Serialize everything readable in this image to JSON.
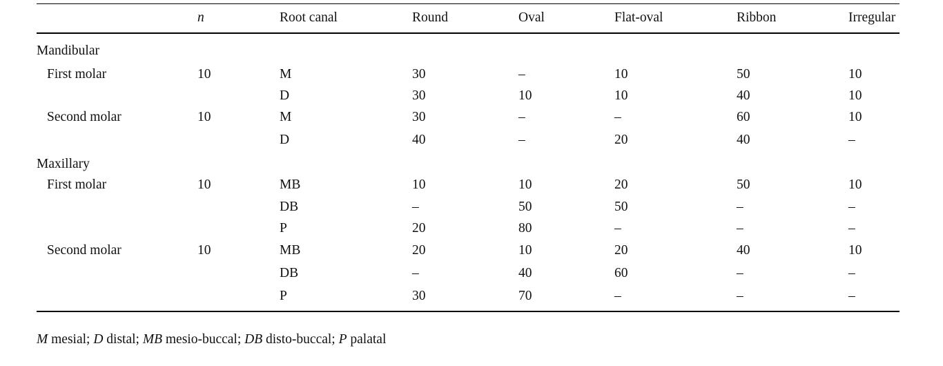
{
  "table": {
    "header": {
      "n": "n",
      "root_canal": "Root canal",
      "round": "Round",
      "oval": "Oval",
      "flat_oval": "Flat-oval",
      "ribbon": "Ribbon",
      "irregular": "Irregular"
    },
    "rows": [
      {
        "kind": "group",
        "label": "Mandibular"
      },
      {
        "kind": "data",
        "tooth": "First molar",
        "n": "10",
        "canal": "M",
        "round": "30",
        "oval": "–",
        "flat_oval": "10",
        "ribbon": "50",
        "irregular": "10"
      },
      {
        "kind": "data",
        "tooth": "",
        "n": "",
        "canal": "D",
        "round": "30",
        "oval": "10",
        "flat_oval": "10",
        "ribbon": "40",
        "irregular": "10"
      },
      {
        "kind": "data",
        "tooth": "Second molar",
        "n": "10",
        "canal": "M",
        "round": "30",
        "oval": "–",
        "flat_oval": "–",
        "ribbon": "60",
        "irregular": "10"
      },
      {
        "kind": "data",
        "tooth": "",
        "n": "",
        "canal": "D",
        "round": "40",
        "oval": "–",
        "flat_oval": "20",
        "ribbon": "40",
        "irregular": "–"
      },
      {
        "kind": "group",
        "label": "Maxillary"
      },
      {
        "kind": "data",
        "tooth": "First molar",
        "n": "10",
        "canal": "MB",
        "round": "10",
        "oval": "10",
        "flat_oval": "20",
        "ribbon": "50",
        "irregular": "10"
      },
      {
        "kind": "data",
        "tooth": "",
        "n": "",
        "canal": "DB",
        "round": "–",
        "oval": "50",
        "flat_oval": "50",
        "ribbon": "–",
        "irregular": "–"
      },
      {
        "kind": "data",
        "tooth": "",
        "n": "",
        "canal": "P",
        "round": "20",
        "oval": "80",
        "flat_oval": "–",
        "ribbon": "–",
        "irregular": "–"
      },
      {
        "kind": "data",
        "tooth": "Second molar",
        "n": "10",
        "canal": "MB",
        "round": "20",
        "oval": "10",
        "flat_oval": "20",
        "ribbon": "40",
        "irregular": "10"
      },
      {
        "kind": "data",
        "tooth": "",
        "n": "",
        "canal": "DB",
        "round": "–",
        "oval": "40",
        "flat_oval": "60",
        "ribbon": "–",
        "irregular": "–"
      },
      {
        "kind": "data",
        "tooth": "",
        "n": "",
        "canal": "P",
        "round": "30",
        "oval": "70",
        "flat_oval": "–",
        "ribbon": "–",
        "irregular": "–"
      }
    ]
  },
  "footnote": [
    {
      "abbr": "M",
      "text": " mesial; "
    },
    {
      "abbr": "D",
      "text": " distal; "
    },
    {
      "abbr": "MB",
      "text": " mesio-buccal; "
    },
    {
      "abbr": "DB",
      "text": " disto-buccal; "
    },
    {
      "abbr": "P",
      "text": " palatal"
    }
  ]
}
